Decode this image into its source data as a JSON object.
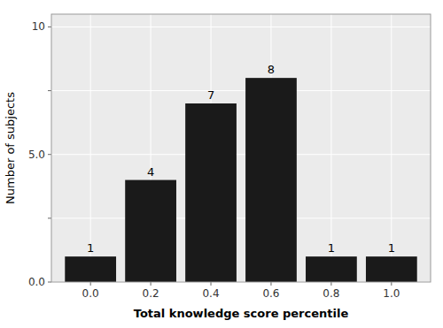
{
  "chart_data": {
    "type": "bar",
    "x": [
      0.0,
      0.2,
      0.4,
      0.6,
      0.8,
      1.0
    ],
    "values": [
      1,
      4,
      7,
      8,
      1,
      1
    ],
    "color": "#1a1a1a",
    "xlabel": "Total knowledge score percentile",
    "ylabel": "Number of subjects",
    "xlim": [
      -0.13,
      1.13
    ],
    "ylim": [
      0,
      10.5
    ],
    "xticks": [
      {
        "value": 0,
        "label": "0.0"
      },
      0.2,
      0.4,
      0.6,
      0.8,
      {
        "value": 1,
        "label": "1.0"
      }
    ],
    "yticks": [
      {
        "value": 0,
        "label": "0.0"
      },
      {
        "value": 2.5,
        "label": null
      },
      {
        "value": 5,
        "label": "5.0"
      },
      {
        "value": 7.5,
        "label": null
      },
      10
    ],
    "grid": true,
    "data_labels": true
  }
}
